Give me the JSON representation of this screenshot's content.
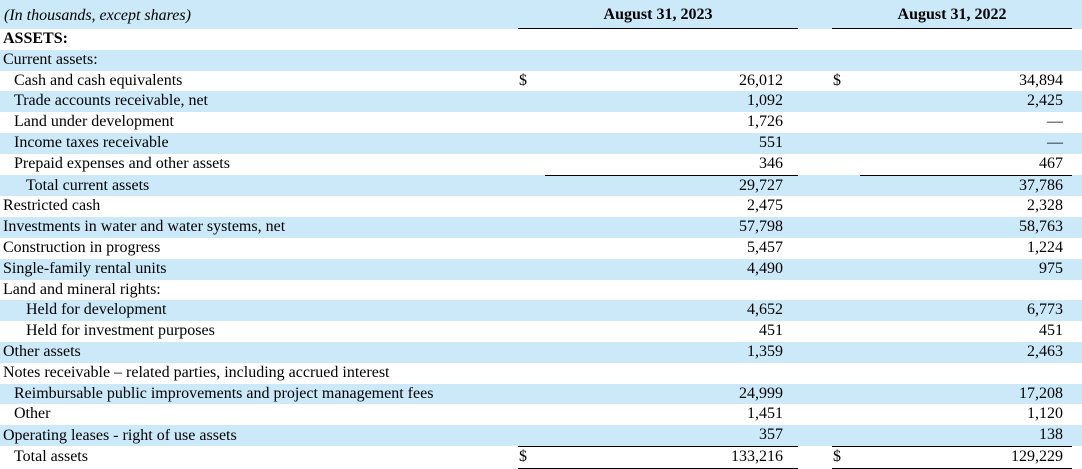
{
  "meta": {
    "units_label": "(In thousands, except shares)",
    "section": "ASSETS",
    "shade_color": "#cce9fa",
    "rule_color": "#000000"
  },
  "columns": [
    {
      "label": "August 31, 2023"
    },
    {
      "label": "August 31, 2022"
    }
  ],
  "rows": [
    {
      "label": "ASSETS:",
      "bold": true,
      "indent": 0,
      "d1": "",
      "v1": "",
      "d2": "",
      "v2": "",
      "rule": ""
    },
    {
      "label": "Current assets:",
      "bold": false,
      "indent": 0,
      "d1": "",
      "v1": "",
      "d2": "",
      "v2": "",
      "rule": ""
    },
    {
      "label": "Cash and cash equivalents",
      "bold": false,
      "indent": 1,
      "d1": "$",
      "v1": "26,012",
      "d2": "$",
      "v2": "34,894",
      "rule": ""
    },
    {
      "label": "Trade accounts receivable, net",
      "bold": false,
      "indent": 1,
      "d1": "",
      "v1": "1,092",
      "d2": "",
      "v2": "2,425",
      "rule": ""
    },
    {
      "label": "Land under development",
      "bold": false,
      "indent": 1,
      "d1": "",
      "v1": "1,726",
      "d2": "",
      "v2": "—",
      "rule": ""
    },
    {
      "label": "Income taxes receivable",
      "bold": false,
      "indent": 1,
      "d1": "",
      "v1": "551",
      "d2": "",
      "v2": "—",
      "rule": ""
    },
    {
      "label": "Prepaid expenses and other assets",
      "bold": false,
      "indent": 1,
      "d1": "",
      "v1": "346",
      "d2": "",
      "v2": "467",
      "rule": "value"
    },
    {
      "label": "Total current assets",
      "bold": false,
      "indent": 2,
      "d1": "",
      "v1": "29,727",
      "d2": "",
      "v2": "37,786",
      "rule": ""
    },
    {
      "label": "Restricted cash",
      "bold": false,
      "indent": 0,
      "d1": "",
      "v1": "2,475",
      "d2": "",
      "v2": "2,328",
      "rule": ""
    },
    {
      "label": "Investments in water and water systems, net",
      "bold": false,
      "indent": 0,
      "d1": "",
      "v1": "57,798",
      "d2": "",
      "v2": "58,763",
      "rule": ""
    },
    {
      "label": "Construction in progress",
      "bold": false,
      "indent": 0,
      "d1": "",
      "v1": "5,457",
      "d2": "",
      "v2": "1,224",
      "rule": ""
    },
    {
      "label": "Single-family rental units",
      "bold": false,
      "indent": 0,
      "d1": "",
      "v1": "4,490",
      "d2": "",
      "v2": "975",
      "rule": ""
    },
    {
      "label": "Land and mineral rights:",
      "bold": false,
      "indent": 0,
      "d1": "",
      "v1": "",
      "d2": "",
      "v2": "",
      "rule": ""
    },
    {
      "label": "Held for development",
      "bold": false,
      "indent": 2,
      "d1": "",
      "v1": "4,652",
      "d2": "",
      "v2": "6,773",
      "rule": ""
    },
    {
      "label": "Held for investment purposes",
      "bold": false,
      "indent": 2,
      "d1": "",
      "v1": "451",
      "d2": "",
      "v2": "451",
      "rule": ""
    },
    {
      "label": "Other assets",
      "bold": false,
      "indent": 0,
      "d1": "",
      "v1": "1,359",
      "d2": "",
      "v2": "2,463",
      "rule": ""
    },
    {
      "label": "Notes receivable – related parties, including accrued interest",
      "bold": false,
      "indent": 0,
      "d1": "",
      "v1": "",
      "d2": "",
      "v2": "",
      "rule": ""
    },
    {
      "label": "Reimbursable public improvements and project management fees",
      "bold": false,
      "indent": 1,
      "d1": "",
      "v1": "24,999",
      "d2": "",
      "v2": "17,208",
      "rule": ""
    },
    {
      "label": "Other",
      "bold": false,
      "indent": 1,
      "d1": "",
      "v1": "1,451",
      "d2": "",
      "v2": "1,120",
      "rule": ""
    },
    {
      "label": "Operating leases - right of use assets",
      "bold": false,
      "indent": 0,
      "d1": "",
      "v1": "357",
      "d2": "",
      "v2": "138",
      "rule": "group"
    },
    {
      "label": "Total assets",
      "bold": false,
      "indent": 1,
      "d1": "$",
      "v1": "133,216",
      "d2": "$",
      "v2": "129,229",
      "rule": "total"
    }
  ]
}
